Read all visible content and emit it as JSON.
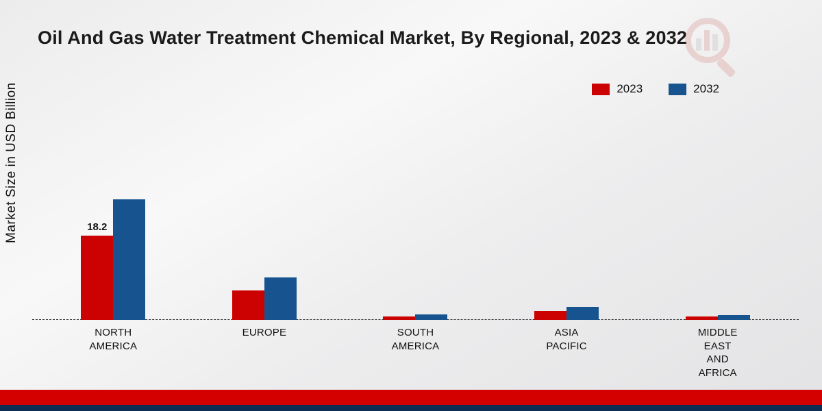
{
  "title": "Oil And Gas Water Treatment Chemical Market, By Regional, 2023 & 2032",
  "ylabel": "Market Size in USD Billion",
  "legend": {
    "items": [
      {
        "label": "2023",
        "color": "#cc0202"
      },
      {
        "label": "2032",
        "color": "#17548f"
      }
    ]
  },
  "footer": {
    "red_strip_color": "#d40000",
    "navy_strip_color": "#0d2d52"
  },
  "watermark": {
    "name": "magnifier-bar-chart-logo"
  },
  "chart_data": {
    "type": "bar",
    "title": "Oil And Gas Water Treatment Chemical Market, By Regional, 2023 & 2032",
    "xlabel": "",
    "ylabel": "Market Size in USD Billion",
    "categories": [
      "NORTH AMERICA",
      "EUROPE",
      "SOUTH AMERICA",
      "ASIA PACIFIC",
      "MIDDLE EAST AND AFRICA"
    ],
    "category_labels": [
      "NORTH\nAMERICA",
      "EUROPE",
      "SOUTH\nAMERICA",
      "ASIA\nPACIFIC",
      "MIDDLE\nEAST\nAND\nAFRICA"
    ],
    "series": [
      {
        "name": "2023",
        "color": "#cc0202",
        "values": [
          18.2,
          6.4,
          0.8,
          1.9,
          0.7
        ]
      },
      {
        "name": "2032",
        "color": "#17548f",
        "values": [
          26.0,
          9.2,
          1.2,
          2.8,
          1.1
        ]
      }
    ],
    "ylim": [
      0,
      28
    ],
    "grid": false,
    "legend_position": "top-right",
    "baseline_style": "dashed",
    "bar_labels": [
      {
        "series_index": 0,
        "category_index": 0,
        "text": "18.2"
      }
    ]
  }
}
